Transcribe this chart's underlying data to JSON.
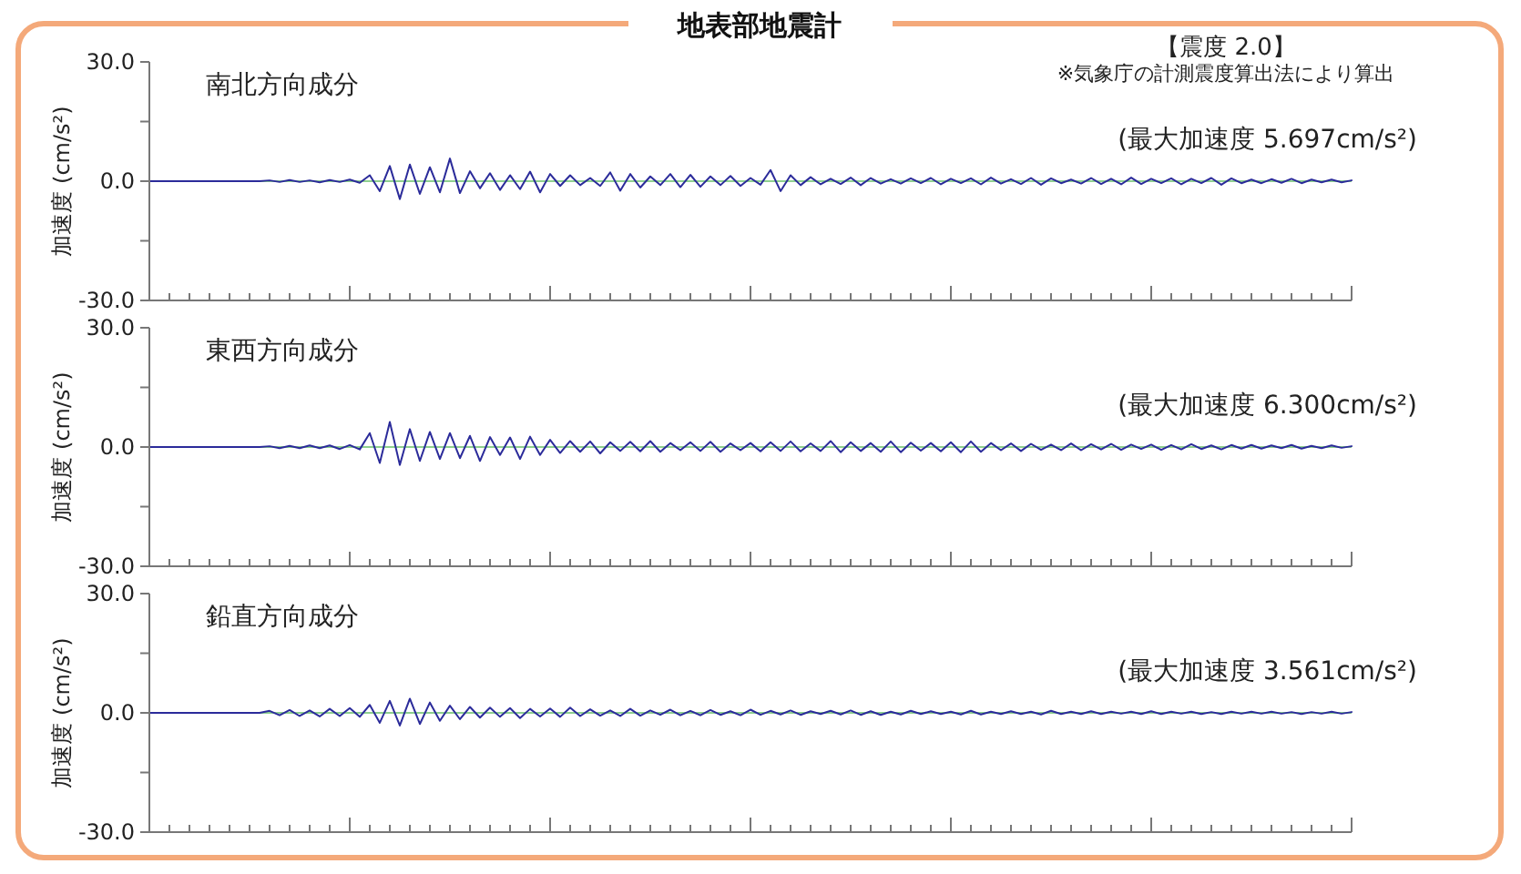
{
  "chart_data": [
    {
      "type": "line",
      "title": "地表部地震計",
      "subtitle": "南北方向成分",
      "ylabel": "加速度 (cm/s²)",
      "annotations": [
        "【震度 2.0】",
        "※気象庁の計測震度算出法により算出",
        "(最大加速度 5.697cm/s²)"
      ],
      "tick_labels": "y",
      "categories": [
        null,
        null,
        null,
        null,
        null,
        null,
        null,
        null,
        null,
        null,
        null,
        null,
        null,
        null,
        null,
        null,
        null,
        null,
        null,
        null,
        null,
        null,
        null,
        null,
        null,
        null,
        null,
        null,
        null,
        null,
        null,
        null,
        null,
        null,
        null,
        null,
        null,
        null,
        null,
        null,
        null,
        null,
        null,
        null,
        null,
        null,
        null,
        null,
        null,
        null,
        null,
        null,
        null,
        null,
        null,
        null,
        null,
        null,
        null,
        null,
        null,
        null,
        null,
        null,
        null,
        null,
        null,
        null,
        null,
        null,
        null,
        null,
        null,
        null,
        null,
        null,
        null,
        null,
        null,
        null,
        null,
        null,
        null,
        null,
        null,
        null,
        null,
        null,
        null,
        null,
        null,
        null,
        null,
        null,
        null,
        null,
        null,
        null,
        null,
        null,
        null,
        null,
        null,
        null,
        null,
        null,
        null,
        null,
        null,
        null,
        null,
        null,
        null,
        null,
        null,
        null,
        null,
        null,
        null,
        null,
        null
      ],
      "series": [
        {
          "color": "#2b2b9a",
          "values": [
            0,
            0,
            0,
            0,
            0,
            0,
            0,
            0,
            0,
            0,
            0,
            0,
            0.2,
            -0.2,
            0.3,
            -0.2,
            0.2,
            -0.3,
            0.3,
            -0.2,
            0.4,
            -0.4,
            1.5,
            -2.5,
            3.8,
            -4.5,
            4.2,
            -3.2,
            3.5,
            -2.8,
            5.697,
            -3.0,
            2.5,
            -1.8,
            2.0,
            -2.2,
            1.5,
            -2.0,
            2.4,
            -2.8,
            1.8,
            -1.2,
            1.5,
            -1.0,
            0.8,
            -1.2,
            2.2,
            -2.4,
            1.8,
            -1.6,
            1.2,
            -1.0,
            1.8,
            -1.5,
            1.6,
            -1.4,
            1.2,
            -1.0,
            1.3,
            -1.2,
            0.8,
            -0.9,
            2.8,
            -2.5,
            1.5,
            -1.0,
            1.0,
            -0.8,
            0.6,
            -0.7,
            0.9,
            -1.0,
            0.8,
            -0.6,
            0.5,
            -0.6,
            0.7,
            -0.5,
            0.8,
            -0.8,
            0.6,
            -0.5,
            0.7,
            -0.8,
            0.9,
            -0.6,
            0.5,
            -0.7,
            0.8,
            -0.9,
            0.7,
            -0.5,
            0.4,
            -0.6,
            0.8,
            -0.7,
            0.6,
            -0.8,
            0.9,
            -0.7,
            0.6,
            -0.5,
            0.7,
            -0.8,
            0.6,
            -0.5,
            0.8,
            -0.9,
            0.7,
            -0.5,
            0.4,
            -0.5,
            0.5,
            -0.4,
            0.6,
            -0.5,
            0.4,
            -0.3,
            0.4,
            -0.3,
            0.2
          ]
        }
      ],
      "ref_lines": [
        {
          "axis": "y",
          "value": 0,
          "color": "#8fd08f"
        }
      ],
      "ylim": [
        -30,
        30
      ],
      "yticks": [
        {
          "value": 30,
          "label": "30.0"
        },
        {
          "value": 15,
          "label": null
        },
        {
          "value": 0,
          "label": "0.0"
        },
        {
          "value": -15,
          "label": null
        },
        {
          "value": -30,
          "label": "-30.0"
        }
      ]
    },
    {
      "type": "line",
      "subtitle": "東西方向成分",
      "ylabel": "加速度 (cm/s²)",
      "annotations": [
        "(最大加速度 6.300cm/s²)"
      ],
      "tick_labels": "y",
      "categories": [
        null,
        null,
        null,
        null,
        null,
        null,
        null,
        null,
        null,
        null,
        null,
        null,
        null,
        null,
        null,
        null,
        null,
        null,
        null,
        null,
        null,
        null,
        null,
        null,
        null,
        null,
        null,
        null,
        null,
        null,
        null,
        null,
        null,
        null,
        null,
        null,
        null,
        null,
        null,
        null,
        null,
        null,
        null,
        null,
        null,
        null,
        null,
        null,
        null,
        null,
        null,
        null,
        null,
        null,
        null,
        null,
        null,
        null,
        null,
        null,
        null,
        null,
        null,
        null,
        null,
        null,
        null,
        null,
        null,
        null,
        null,
        null,
        null,
        null,
        null,
        null,
        null,
        null,
        null,
        null,
        null,
        null,
        null,
        null,
        null,
        null,
        null,
        null,
        null,
        null,
        null,
        null,
        null,
        null,
        null,
        null,
        null,
        null,
        null,
        null,
        null,
        null,
        null,
        null,
        null,
        null,
        null,
        null,
        null,
        null,
        null,
        null,
        null,
        null,
        null,
        null,
        null,
        null,
        null,
        null,
        null
      ],
      "series": [
        {
          "color": "#2b2b9a",
          "values": [
            0,
            0,
            0,
            0,
            0,
            0,
            0,
            0,
            0,
            0,
            0,
            0,
            0.2,
            -0.3,
            0.3,
            -0.3,
            0.4,
            -0.3,
            0.4,
            -0.5,
            0.5,
            -0.6,
            3.5,
            -4.0,
            6.3,
            -4.5,
            4.5,
            -3.5,
            3.8,
            -3.0,
            3.5,
            -2.8,
            2.8,
            -3.5,
            2.5,
            -2.0,
            2.4,
            -3.0,
            2.6,
            -2.0,
            1.8,
            -1.5,
            1.5,
            -1.2,
            1.4,
            -1.6,
            1.2,
            -1.0,
            1.3,
            -1.1,
            1.5,
            -1.2,
            1.0,
            -0.8,
            1.2,
            -1.0,
            1.3,
            -1.2,
            0.9,
            -0.8,
            1.0,
            -1.1,
            1.2,
            -1.0,
            1.4,
            -1.1,
            0.9,
            -1.0,
            1.5,
            -1.3,
            1.2,
            -1.0,
            1.0,
            -1.2,
            1.4,
            -1.3,
            1.1,
            -0.9,
            1.0,
            -1.1,
            1.2,
            -1.3,
            1.4,
            -1.2,
            1.0,
            -0.8,
            0.9,
            -1.0,
            0.8,
            -0.7,
            0.6,
            -0.8,
            0.9,
            -0.8,
            0.7,
            -0.6,
            0.8,
            -0.7,
            0.6,
            -0.5,
            0.6,
            -0.7,
            0.5,
            -0.6,
            0.7,
            -0.5,
            0.4,
            -0.6,
            0.5,
            -0.4,
            0.5,
            -0.4,
            0.4,
            -0.3,
            0.5,
            -0.4,
            0.3,
            -0.3,
            0.4,
            -0.2,
            0.2
          ]
        }
      ],
      "ref_lines": [
        {
          "axis": "y",
          "value": 0,
          "color": "#8fd08f"
        }
      ],
      "ylim": [
        -30,
        30
      ],
      "yticks": [
        {
          "value": 30,
          "label": "30.0"
        },
        {
          "value": 15,
          "label": null
        },
        {
          "value": 0,
          "label": "0.0"
        },
        {
          "value": -15,
          "label": null
        },
        {
          "value": -30,
          "label": "-30.0"
        }
      ]
    },
    {
      "type": "line",
      "subtitle": "鉛直方向成分",
      "ylabel": "加速度 (cm/s²)",
      "annotations": [
        "(最大加速度 3.561cm/s²)"
      ],
      "tick_labels": "y",
      "categories": [
        null,
        null,
        null,
        null,
        null,
        null,
        null,
        null,
        null,
        null,
        null,
        null,
        null,
        null,
        null,
        null,
        null,
        null,
        null,
        null,
        null,
        null,
        null,
        null,
        null,
        null,
        null,
        null,
        null,
        null,
        null,
        null,
        null,
        null,
        null,
        null,
        null,
        null,
        null,
        null,
        null,
        null,
        null,
        null,
        null,
        null,
        null,
        null,
        null,
        null,
        null,
        null,
        null,
        null,
        null,
        null,
        null,
        null,
        null,
        null,
        null,
        null,
        null,
        null,
        null,
        null,
        null,
        null,
        null,
        null,
        null,
        null,
        null,
        null,
        null,
        null,
        null,
        null,
        null,
        null,
        null,
        null,
        null,
        null,
        null,
        null,
        null,
        null,
        null,
        null,
        null,
        null,
        null,
        null,
        null,
        null,
        null,
        null,
        null,
        null,
        null,
        null,
        null,
        null,
        null,
        null,
        null,
        null,
        null,
        null,
        null,
        null,
        null,
        null,
        null,
        null,
        null,
        null,
        null,
        null,
        null
      ],
      "series": [
        {
          "color": "#2b2b9a",
          "values": [
            0,
            0,
            0,
            0,
            0,
            0,
            0,
            0,
            0,
            0,
            0,
            0,
            0.5,
            -0.6,
            0.7,
            -0.8,
            0.6,
            -0.9,
            1.0,
            -0.8,
            1.2,
            -1.0,
            2.0,
            -2.5,
            3.0,
            -3.2,
            3.561,
            -2.8,
            2.6,
            -2.0,
            1.8,
            -1.6,
            1.5,
            -1.2,
            1.3,
            -1.0,
            1.2,
            -1.3,
            1.0,
            -0.9,
            1.1,
            -1.0,
            1.3,
            -0.8,
            0.9,
            -0.7,
            0.6,
            -0.8,
            1.0,
            -0.7,
            0.6,
            -0.5,
            0.8,
            -0.6,
            0.5,
            -0.6,
            0.7,
            -0.5,
            0.4,
            -0.6,
            0.8,
            -0.5,
            0.5,
            -0.4,
            0.6,
            -0.5,
            0.4,
            -0.3,
            0.5,
            -0.4,
            0.6,
            -0.5,
            0.4,
            -0.5,
            0.3,
            -0.4,
            0.5,
            -0.3,
            0.4,
            -0.3,
            0.3,
            -0.4,
            0.5,
            -0.4,
            0.3,
            -0.3,
            0.4,
            -0.3,
            0.3,
            -0.4,
            0.5,
            -0.3,
            0.3,
            -0.3,
            0.4,
            -0.3,
            0.3,
            -0.2,
            0.3,
            -0.3,
            0.4,
            -0.3,
            0.3,
            -0.2,
            0.3,
            -0.3,
            0.2,
            -0.3,
            0.3,
            -0.2,
            0.3,
            -0.2,
            0.3,
            -0.2,
            0.2,
            -0.3,
            0.2,
            -0.2,
            0.3,
            -0.2,
            0.2
          ]
        }
      ],
      "ref_lines": [
        {
          "axis": "y",
          "value": 0,
          "color": "#8fd08f"
        }
      ],
      "ylim": [
        -30,
        30
      ],
      "yticks": [
        {
          "value": 30,
          "label": "30.0"
        },
        {
          "value": 15,
          "label": null
        },
        {
          "value": 0,
          "label": "0.0"
        },
        {
          "value": -15,
          "label": null
        },
        {
          "value": -30,
          "label": "-30.0"
        }
      ]
    }
  ]
}
